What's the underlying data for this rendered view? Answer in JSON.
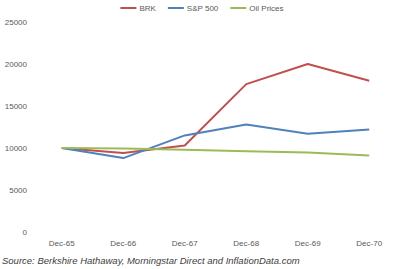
{
  "chart_data": {
    "type": "line",
    "categories": [
      "Dec-65",
      "Dec-66",
      "Dec-67",
      "Dec-68",
      "Dec-69",
      "Dec-70"
    ],
    "series": [
      {
        "name": "BRK",
        "color": "#c0504d",
        "values": [
          10000,
          9400,
          10300,
          17600,
          20000,
          18000
        ]
      },
      {
        "name": "S&P 500",
        "color": "#4f81bd",
        "values": [
          10000,
          8800,
          11500,
          12800,
          11700,
          12200
        ]
      },
      {
        "name": "Oil Prices",
        "color": "#9bbb59",
        "values": [
          10000,
          9950,
          9800,
          9600,
          9450,
          9100
        ]
      }
    ],
    "ylim": [
      0,
      25000
    ],
    "yticks": [
      0,
      5000,
      10000,
      15000,
      20000,
      25000
    ],
    "grid": false,
    "legend": "top",
    "annotations": [
      "Source: Berkshire Hathaway, Morningstar Direct and InflationData.com"
    ]
  }
}
